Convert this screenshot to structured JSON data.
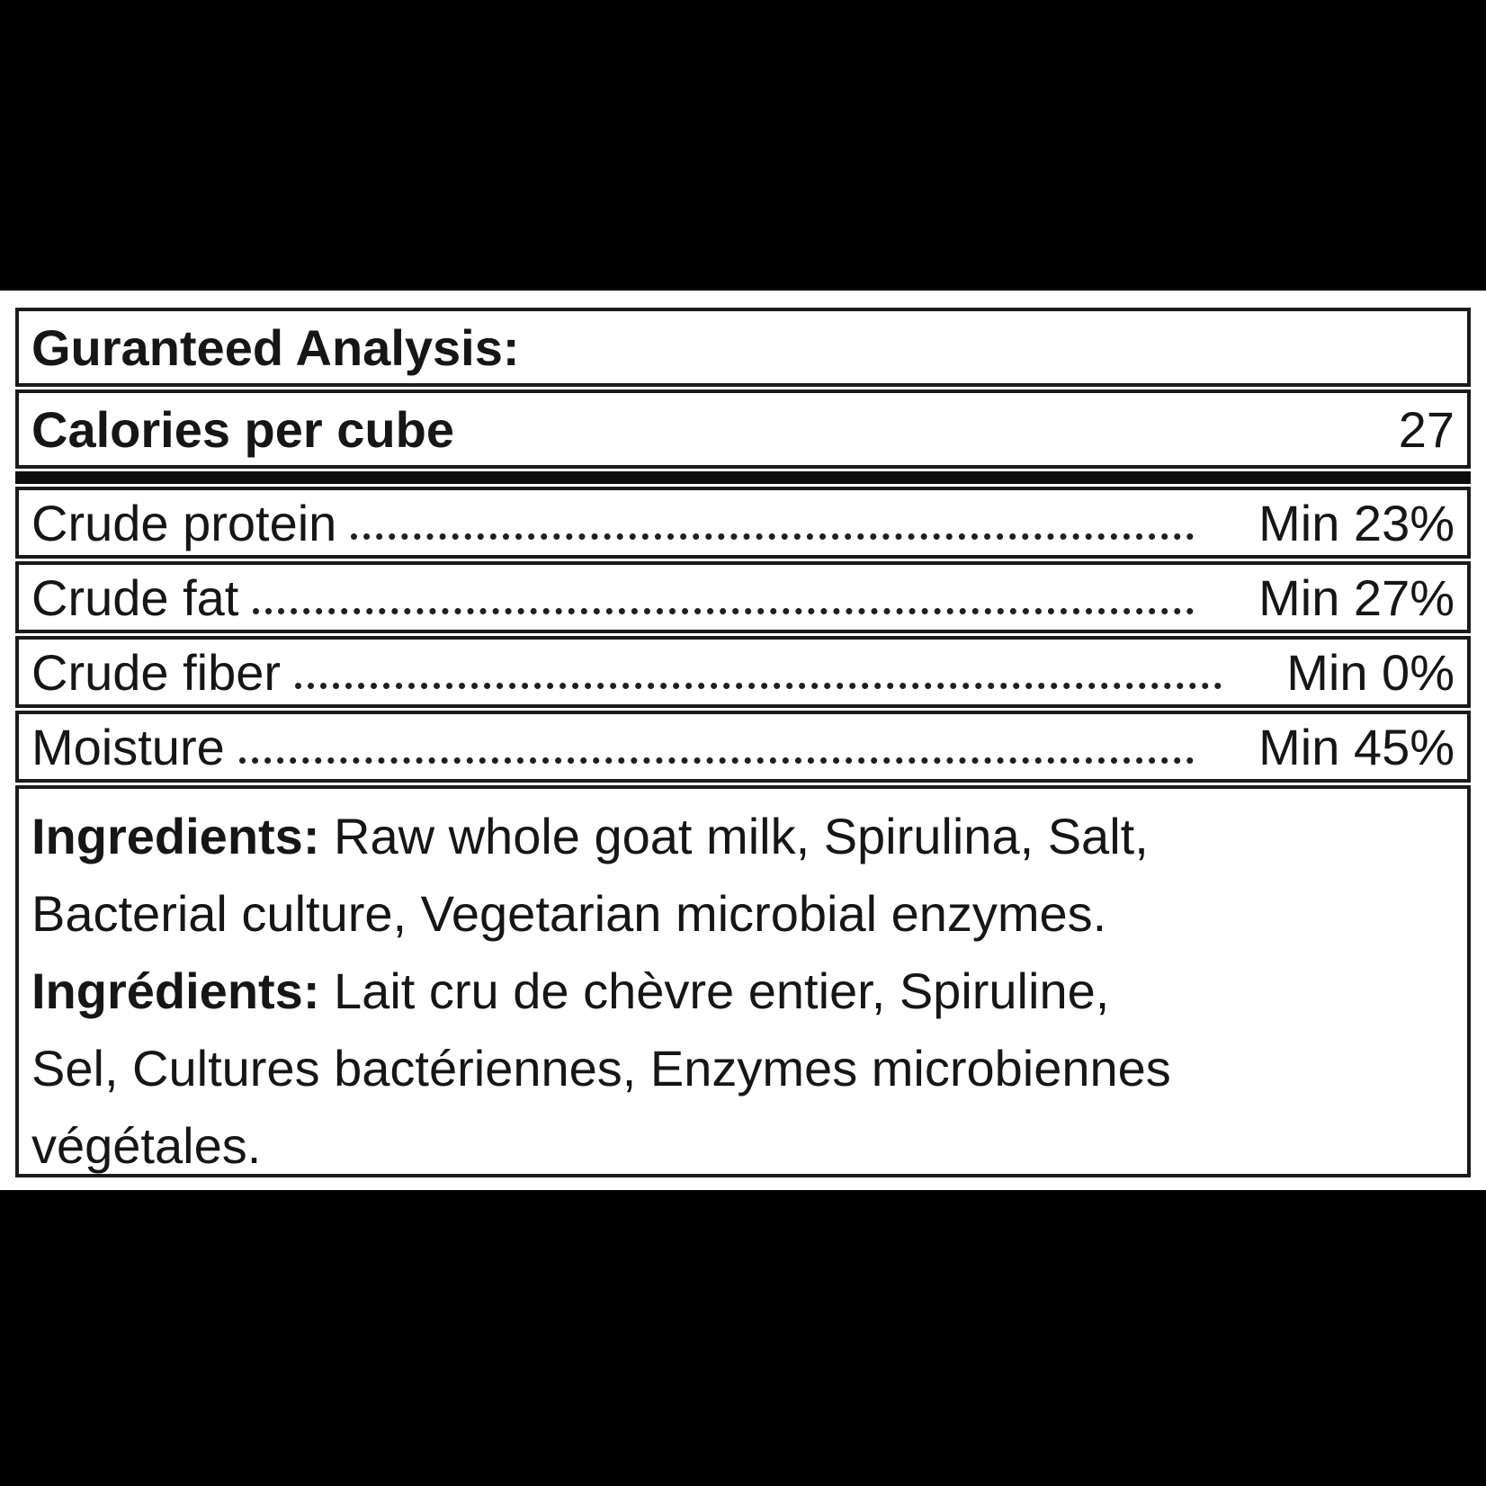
{
  "page": {
    "background_color": "#000000",
    "panel_color": "#ffffff",
    "text_color": "#161616"
  },
  "table": {
    "header": "Guranteed Analysis:",
    "calories": {
      "label": "Calories per cube",
      "value": "27"
    },
    "analysis_rows": [
      {
        "label": "Crude protein",
        "value": "Min 23%"
      },
      {
        "label": "Crude fat",
        "value": "Min 27%"
      },
      {
        "label": "Crude fiber",
        "value": "Min 0%"
      },
      {
        "label": "Moisture",
        "value": "Min 45%"
      }
    ],
    "ingredients": {
      "lines": [
        {
          "bold": "Ingredients:",
          "rest": " Raw whole goat milk, Spirulina, Salt,"
        },
        {
          "bold": "",
          "rest": "Bacterial culture, Vegetarian microbial enzymes."
        },
        {
          "bold": "Ingrédients:",
          "rest": " Lait cru de chèvre entier, Spiruline,"
        },
        {
          "bold": "",
          "rest": "Sel, Cultures bactériennes, Enzymes microbiennes"
        },
        {
          "bold": "",
          "rest": "végétales."
        }
      ]
    }
  }
}
